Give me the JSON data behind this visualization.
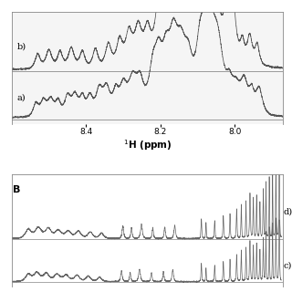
{
  "panel_B_label": "B",
  "xlabel_A": "$^{1}$H (ppm)",
  "label_a": "a)",
  "label_b": "b)",
  "label_c": "c)",
  "label_d": "d)",
  "line_color": "#555555"
}
